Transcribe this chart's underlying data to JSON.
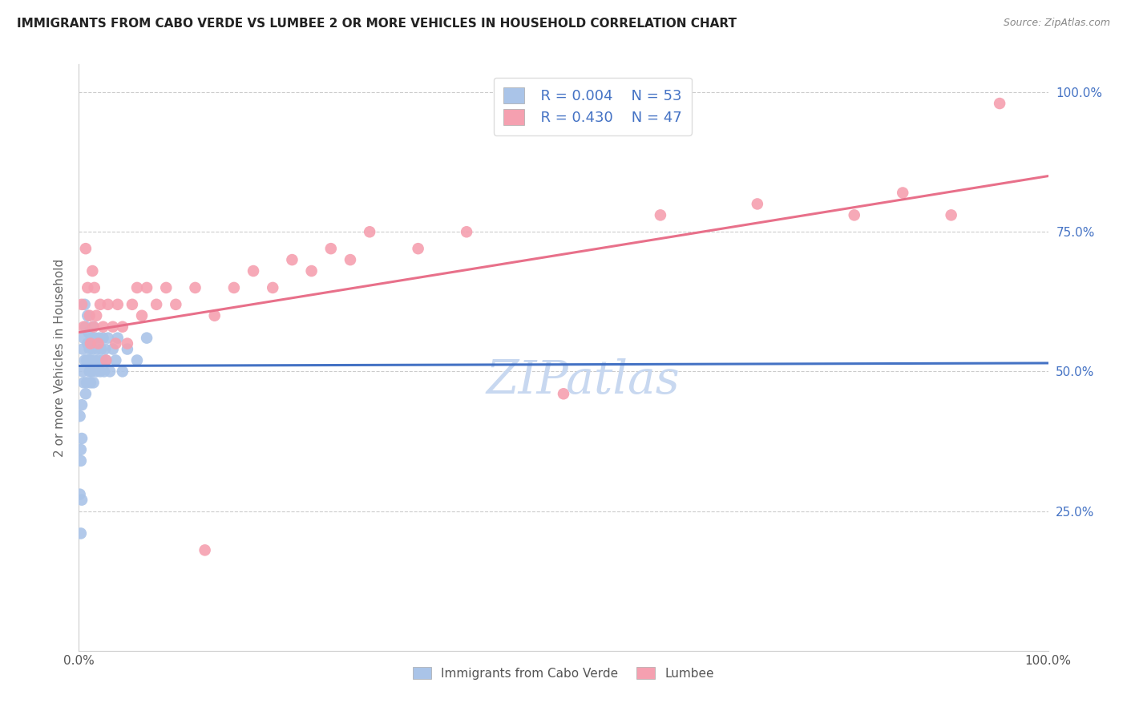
{
  "title": "IMMIGRANTS FROM CABO VERDE VS LUMBEE 2 OR MORE VEHICLES IN HOUSEHOLD CORRELATION CHART",
  "source_text": "Source: ZipAtlas.com",
  "ylabel": "2 or more Vehicles in Household",
  "xlim": [
    0.0,
    1.0
  ],
  "ylim": [
    0.0,
    1.05
  ],
  "grid_color": "#cccccc",
  "cabo_verde_color": "#aac4e8",
  "lumbee_color": "#f5a0b0",
  "cabo_verde_line_color": "#4472c4",
  "lumbee_line_color": "#e8708a",
  "cabo_verde_R": "0.004",
  "cabo_verde_N": "53",
  "lumbee_R": "0.430",
  "lumbee_N": "47",
  "label_color": "#4472c4",
  "watermark_color": "#c8d8f0",
  "cabo_verde_x": [
    0.001,
    0.002,
    0.002,
    0.003,
    0.003,
    0.004,
    0.004,
    0.005,
    0.005,
    0.006,
    0.006,
    0.007,
    0.007,
    0.008,
    0.008,
    0.009,
    0.009,
    0.01,
    0.01,
    0.011,
    0.011,
    0.012,
    0.012,
    0.013,
    0.013,
    0.014,
    0.015,
    0.015,
    0.016,
    0.017,
    0.018,
    0.019,
    0.02,
    0.021,
    0.022,
    0.023,
    0.024,
    0.025,
    0.026,
    0.027,
    0.028,
    0.03,
    0.032,
    0.035,
    0.038,
    0.04,
    0.045,
    0.05,
    0.06,
    0.07,
    0.001,
    0.002,
    0.003
  ],
  "cabo_verde_y": [
    0.28,
    0.21,
    0.34,
    0.27,
    0.38,
    0.5,
    0.54,
    0.48,
    0.56,
    0.52,
    0.62,
    0.46,
    0.58,
    0.52,
    0.48,
    0.55,
    0.6,
    0.52,
    0.57,
    0.5,
    0.54,
    0.48,
    0.52,
    0.56,
    0.5,
    0.54,
    0.58,
    0.48,
    0.52,
    0.56,
    0.5,
    0.54,
    0.52,
    0.56,
    0.5,
    0.54,
    0.52,
    0.56,
    0.5,
    0.54,
    0.52,
    0.56,
    0.5,
    0.54,
    0.52,
    0.56,
    0.5,
    0.54,
    0.52,
    0.56,
    0.42,
    0.36,
    0.44
  ],
  "lumbee_x": [
    0.003,
    0.005,
    0.007,
    0.009,
    0.011,
    0.012,
    0.014,
    0.015,
    0.016,
    0.018,
    0.02,
    0.022,
    0.025,
    0.028,
    0.03,
    0.035,
    0.038,
    0.04,
    0.045,
    0.05,
    0.055,
    0.06,
    0.065,
    0.07,
    0.08,
    0.09,
    0.1,
    0.12,
    0.14,
    0.16,
    0.18,
    0.2,
    0.22,
    0.24,
    0.26,
    0.28,
    0.3,
    0.35,
    0.4,
    0.5,
    0.6,
    0.7,
    0.8,
    0.85,
    0.9,
    0.95,
    0.13
  ],
  "lumbee_y": [
    0.62,
    0.58,
    0.72,
    0.65,
    0.6,
    0.55,
    0.68,
    0.58,
    0.65,
    0.6,
    0.55,
    0.62,
    0.58,
    0.52,
    0.62,
    0.58,
    0.55,
    0.62,
    0.58,
    0.55,
    0.62,
    0.65,
    0.6,
    0.65,
    0.62,
    0.65,
    0.62,
    0.65,
    0.6,
    0.65,
    0.68,
    0.65,
    0.7,
    0.68,
    0.72,
    0.7,
    0.75,
    0.72,
    0.75,
    0.46,
    0.78,
    0.8,
    0.78,
    0.82,
    0.78,
    0.98,
    0.18
  ]
}
